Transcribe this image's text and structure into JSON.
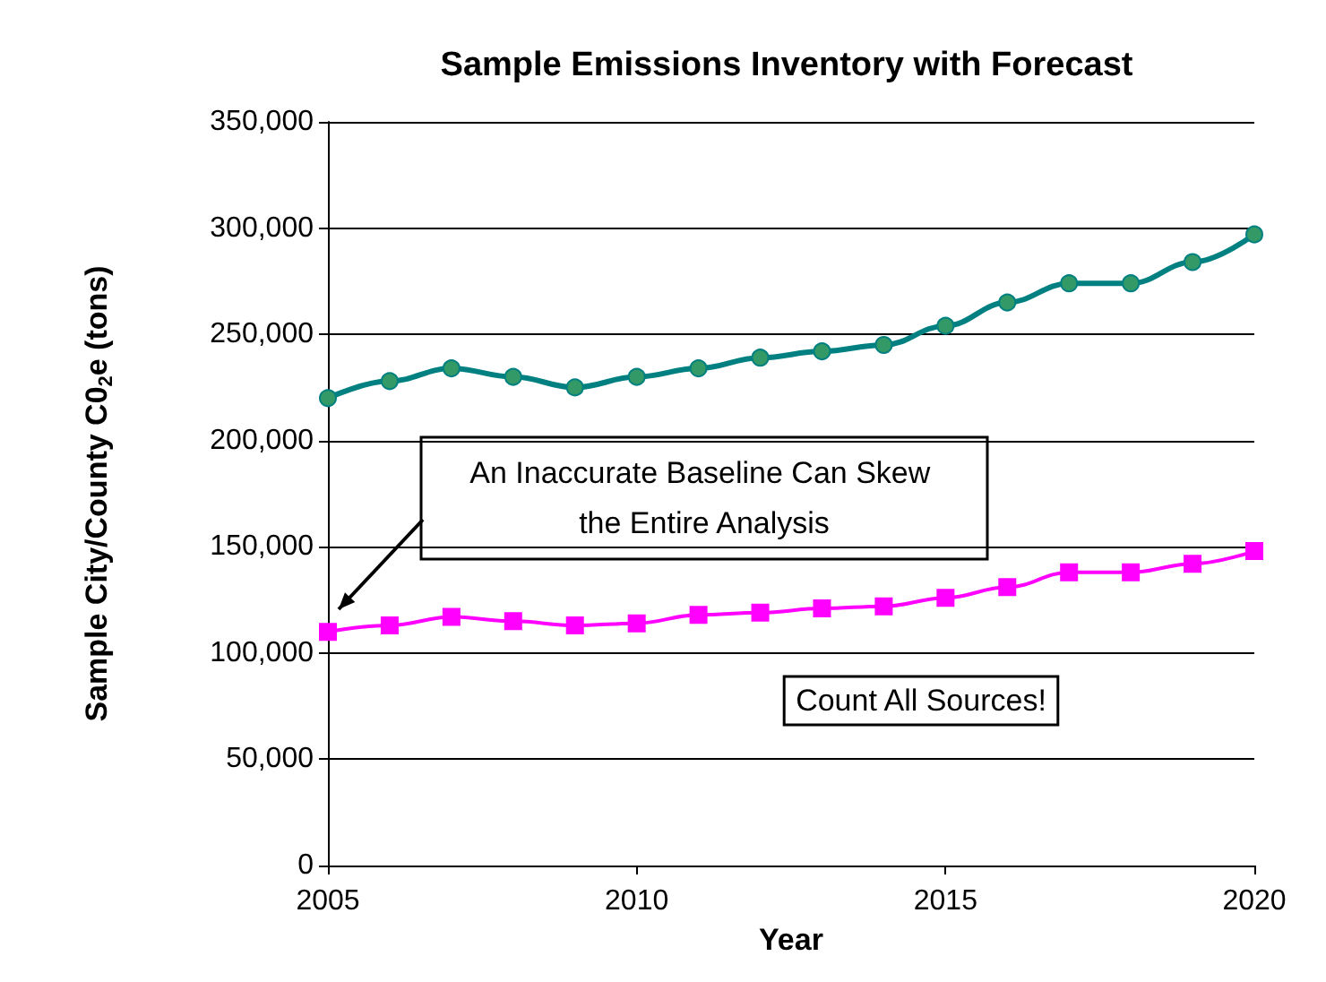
{
  "chart_data": {
    "type": "line",
    "title": "Sample Emissions Inventory with Forecast",
    "xlabel": "Year",
    "ylabel": "Sample City/County C0$_{2}$e (tons)",
    "x": [
      2005,
      2006,
      2007,
      2008,
      2009,
      2010,
      2011,
      2012,
      2013,
      2014,
      2015,
      2016,
      2017,
      2018,
      2019,
      2020
    ],
    "series": [
      {
        "color": "#008080",
        "marker": "circle",
        "values": [
          220000,
          228000,
          234000,
          230000,
          225000,
          230000,
          234000,
          239000,
          242000,
          245000,
          254000,
          265000,
          274000,
          274000,
          284000,
          297000
        ]
      },
      {
        "color": "#ff00ff",
        "marker": "square",
        "values": [
          110000,
          113000,
          117000,
          115000,
          113000,
          114000,
          118000,
          119000,
          121000,
          122000,
          126000,
          131000,
          138000,
          138000,
          142000,
          148000
        ]
      }
    ],
    "xlim": [
      2005,
      2020
    ],
    "xticks": [
      2005,
      2010,
      2015,
      2020
    ],
    "ylim": [
      0,
      350000
    ],
    "yticks": [
      0,
      {
        "value": 50000,
        "label": "50,000"
      },
      {
        "value": 100000,
        "label": "100,000"
      },
      {
        "value": 150000,
        "label": "150,000"
      },
      {
        "value": 200000,
        "label": "200,000"
      },
      {
        "value": 250000,
        "label": "250,000"
      },
      {
        "value": 300000,
        "label": "300,000"
      },
      {
        "value": 350000,
        "label": "350,000"
      }
    ],
    "grid": "y",
    "annotations": [
      "An Inaccurate Baseline Can Skew the Entire Analysis",
      "Count All Sources!"
    ]
  }
}
